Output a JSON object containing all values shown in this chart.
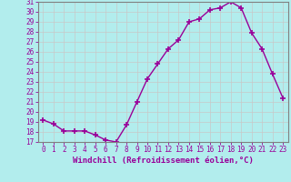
{
  "x": [
    0,
    1,
    2,
    3,
    4,
    5,
    6,
    7,
    8,
    9,
    10,
    11,
    12,
    13,
    14,
    15,
    16,
    17,
    18,
    19,
    20,
    21,
    22,
    23
  ],
  "y": [
    19.2,
    18.8,
    18.1,
    18.1,
    18.1,
    17.7,
    17.2,
    17.0,
    18.7,
    21.0,
    23.3,
    24.8,
    26.3,
    27.2,
    29.0,
    29.3,
    30.2,
    30.4,
    31.0,
    30.4,
    27.9,
    26.3,
    23.8,
    21.4
  ],
  "line_color": "#990099",
  "marker": "+",
  "marker_size": 4,
  "linewidth": 1.0,
  "ylim": [
    17,
    31
  ],
  "yticks": [
    17,
    18,
    19,
    20,
    21,
    22,
    23,
    24,
    25,
    26,
    27,
    28,
    29,
    30,
    31
  ],
  "xticks": [
    0,
    1,
    2,
    3,
    4,
    5,
    6,
    7,
    8,
    9,
    10,
    11,
    12,
    13,
    14,
    15,
    16,
    17,
    18,
    19,
    20,
    21,
    22,
    23
  ],
  "xlabel": "Windchill (Refroidissement éolien,°C)",
  "xlabel_fontsize": 6.5,
  "tick_fontsize": 5.5,
  "background_color": "#b2eded",
  "grid_color": "#c8c8c8",
  "axis_color": "#990099",
  "label_color": "#990099",
  "spine_color": "#808080"
}
